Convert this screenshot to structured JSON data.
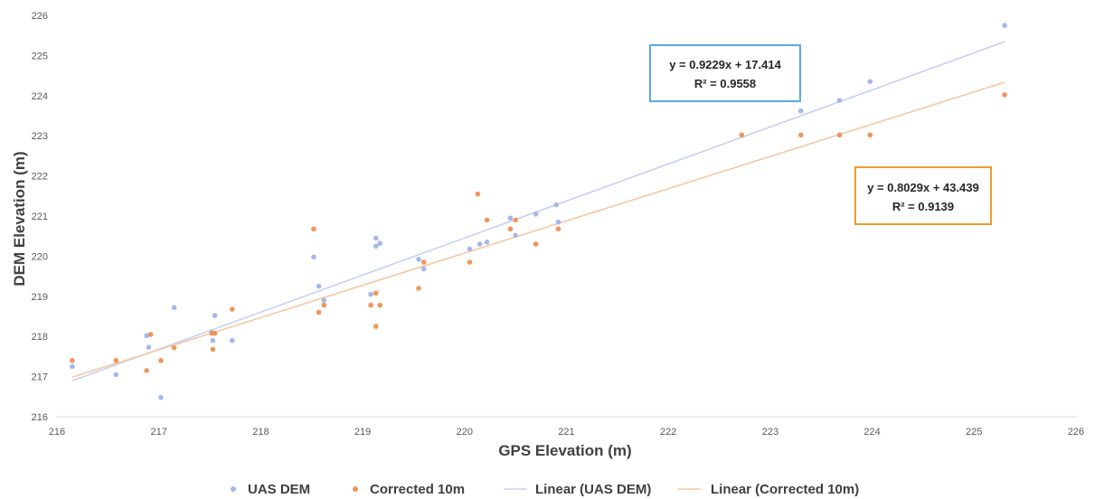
{
  "chart_data": {
    "type": "scatter",
    "xlabel": "GPS Elevation (m)",
    "ylabel": "DEM Elevation (m)",
    "xlim": [
      216,
      226
    ],
    "ylim": [
      216,
      226
    ],
    "x_ticks": [
      "216",
      "217",
      "218",
      "219",
      "220",
      "221",
      "222",
      "223",
      "224",
      "225",
      "226"
    ],
    "y_ticks": [
      "216",
      "217",
      "218",
      "219",
      "220",
      "221",
      "222",
      "223",
      "224",
      "225",
      "226"
    ],
    "grid": false,
    "legend_position": "bottom",
    "series": [
      {
        "name": "UAS DEM",
        "color": "#a4b8ec",
        "points": [
          [
            216.15,
            217.25
          ],
          [
            216.58,
            217.05
          ],
          [
            216.88,
            218.02
          ],
          [
            216.9,
            217.73
          ],
          [
            217.02,
            216.48
          ],
          [
            217.15,
            218.72
          ],
          [
            217.52,
            218.1
          ],
          [
            217.53,
            217.9
          ],
          [
            217.55,
            218.52
          ],
          [
            217.72,
            217.9
          ],
          [
            218.52,
            219.98
          ],
          [
            218.57,
            219.25
          ],
          [
            218.62,
            218.9
          ],
          [
            219.08,
            219.05
          ],
          [
            219.13,
            220.45
          ],
          [
            219.13,
            220.25
          ],
          [
            219.17,
            220.32
          ],
          [
            219.55,
            219.92
          ],
          [
            219.6,
            219.68
          ],
          [
            220.05,
            220.18
          ],
          [
            220.15,
            220.3
          ],
          [
            220.22,
            220.35
          ],
          [
            220.45,
            220.95
          ],
          [
            220.5,
            220.52
          ],
          [
            220.7,
            221.05
          ],
          [
            220.9,
            221.28
          ],
          [
            220.92,
            220.85
          ],
          [
            223.3,
            223.62
          ],
          [
            223.68,
            223.88
          ],
          [
            223.98,
            224.35
          ],
          [
            225.3,
            225.75
          ]
        ]
      },
      {
        "name": "Corrected 10m",
        "color": "#f0965a",
        "points": [
          [
            216.15,
            217.4
          ],
          [
            216.58,
            217.4
          ],
          [
            216.88,
            217.15
          ],
          [
            216.92,
            218.05
          ],
          [
            217.02,
            217.4
          ],
          [
            217.15,
            217.72
          ],
          [
            217.52,
            218.08
          ],
          [
            217.53,
            217.68
          ],
          [
            217.55,
            218.08
          ],
          [
            217.72,
            218.68
          ],
          [
            218.52,
            220.68
          ],
          [
            218.57,
            218.6
          ],
          [
            218.62,
            218.78
          ],
          [
            219.08,
            218.78
          ],
          [
            219.13,
            219.08
          ],
          [
            219.13,
            218.25
          ],
          [
            219.17,
            218.78
          ],
          [
            219.55,
            219.2
          ],
          [
            219.6,
            219.85
          ],
          [
            220.05,
            219.85
          ],
          [
            220.13,
            221.55
          ],
          [
            220.22,
            220.9
          ],
          [
            220.45,
            220.68
          ],
          [
            220.5,
            220.9
          ],
          [
            220.7,
            220.3
          ],
          [
            220.92,
            220.68
          ],
          [
            222.72,
            223.02
          ],
          [
            223.3,
            223.02
          ],
          [
            223.68,
            223.02
          ],
          [
            223.98,
            223.02
          ],
          [
            225.3,
            224.02
          ]
        ]
      }
    ],
    "trendlines": [
      {
        "name": "Linear (UAS DEM)",
        "slope": 0.9229,
        "intercept": 17.414,
        "color": "#c6d2f2",
        "equation": "y = 0.9229x + 17.414",
        "r2": "R² = 0.9558",
        "box_color": "#5aa9e6"
      },
      {
        "name": "Linear (Corrected 10m)",
        "slope": 0.8029,
        "intercept": 43.439,
        "color": "#f5c7a3",
        "equation": "y = 0.8029x + 43.439",
        "r2": "R² = 0.9139",
        "box_color": "#f29a2e"
      }
    ],
    "legend": [
      "UAS DEM",
      "Corrected 10m",
      "Linear (UAS DEM)",
      "Linear (Corrected 10m)"
    ]
  }
}
